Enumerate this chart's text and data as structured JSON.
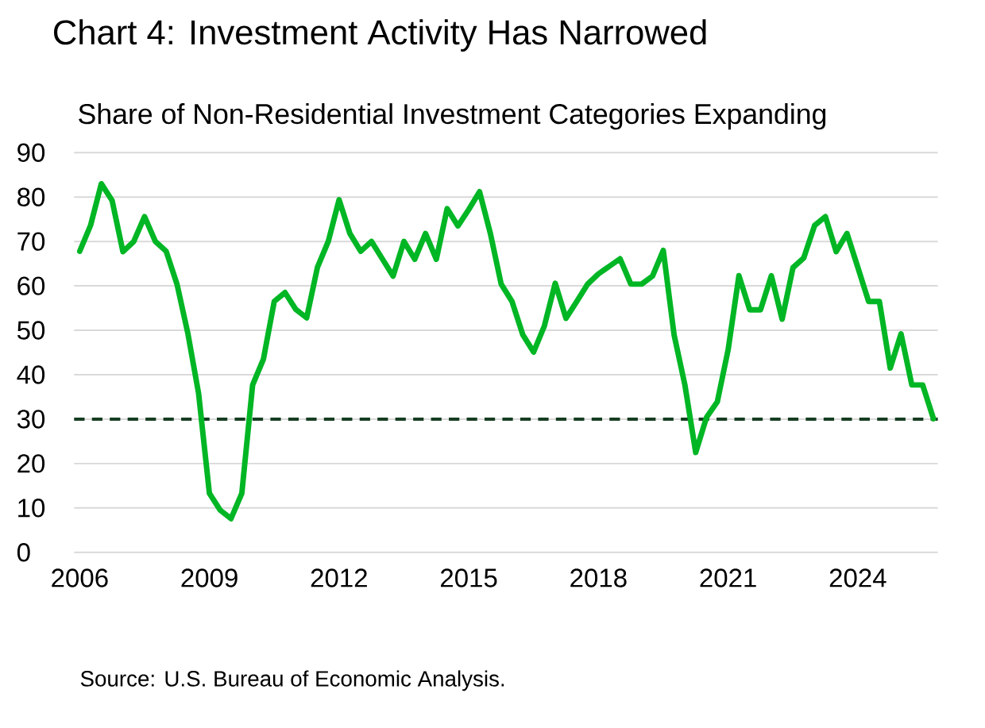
{
  "chart_data": {
    "type": "line",
    "title": "Chart 4: Investment Activity Has Narrowed",
    "subtitle": "Share of Non-Residential Investment Categories Expanding",
    "annotations": [
      "Source: U.S. Bureau of Economic Analysis."
    ],
    "x": [
      2006.0,
      2006.25,
      2006.5,
      2006.75,
      2007.0,
      2007.25,
      2007.5,
      2007.75,
      2008.0,
      2008.25,
      2008.5,
      2008.75,
      2009.0,
      2009.25,
      2009.5,
      2009.75,
      2010.0,
      2010.25,
      2010.5,
      2010.75,
      2011.0,
      2011.25,
      2011.5,
      2011.75,
      2012.0,
      2012.25,
      2012.5,
      2012.75,
      2013.0,
      2013.25,
      2013.5,
      2013.75,
      2014.0,
      2014.25,
      2014.5,
      2014.75,
      2015.0,
      2015.25,
      2015.5,
      2015.75,
      2016.0,
      2016.25,
      2016.5,
      2016.75,
      2017.0,
      2017.25,
      2017.5,
      2017.75,
      2018.0,
      2018.25,
      2018.5,
      2018.75,
      2019.0,
      2019.25,
      2019.5,
      2019.75,
      2020.0,
      2020.25,
      2020.5,
      2020.75,
      2021.0,
      2021.25,
      2021.5,
      2021.75,
      2022.0,
      2022.25,
      2022.5,
      2022.75,
      2023.0,
      2023.25,
      2023.5,
      2023.75,
      2024.0,
      2024.25,
      2024.5,
      2024.75,
      2025.0,
      2025.25,
      2025.5,
      2025.75
    ],
    "series": [
      {
        "color": "#00b624",
        "values": [
          67.8,
          73.6,
          83,
          79.2,
          67.7,
          70,
          75.6,
          70,
          67.8,
          60.4,
          49.4,
          35.8,
          13.3,
          9.5,
          7.6,
          13.3,
          37.7,
          43.5,
          56.5,
          58.5,
          54.7,
          52.8,
          64.2,
          70,
          79.4,
          71.8,
          67.8,
          70,
          66.1,
          62.2,
          70,
          66,
          71.8,
          66,
          77.4,
          73.5,
          77.2,
          81.2,
          71.8,
          60.4,
          56.5,
          49,
          45.1,
          51,
          60.6,
          52.7,
          56.5,
          60.4,
          62.7,
          64.4,
          66.1,
          60.4,
          60.4,
          62.2,
          68,
          49,
          37.7,
          22.5,
          30.4,
          33.9,
          45.6,
          62.3,
          54.6,
          54.6,
          62.3,
          52.5,
          64.1,
          66.3,
          73.6,
          75.6,
          67.7,
          71.8,
          64.2,
          56.5,
          56.5,
          41.5,
          49.2,
          37.7,
          37.7,
          30.1
        ]
      }
    ],
    "xlim": [
      2005.87,
      2025.85
    ],
    "xticks": [
      2006,
      2009,
      2012,
      2015,
      2018,
      2021,
      2024
    ],
    "ylim": [
      0,
      90
    ],
    "yticks": [
      0,
      10,
      20,
      30,
      40,
      50,
      60,
      70,
      80,
      90
    ],
    "grid": "y",
    "marker": "none",
    "line_style": "solid",
    "ref_lines": [
      {
        "axis": "y",
        "value": 30,
        "color": "#173d22",
        "line_style": "dashed"
      }
    ]
  }
}
